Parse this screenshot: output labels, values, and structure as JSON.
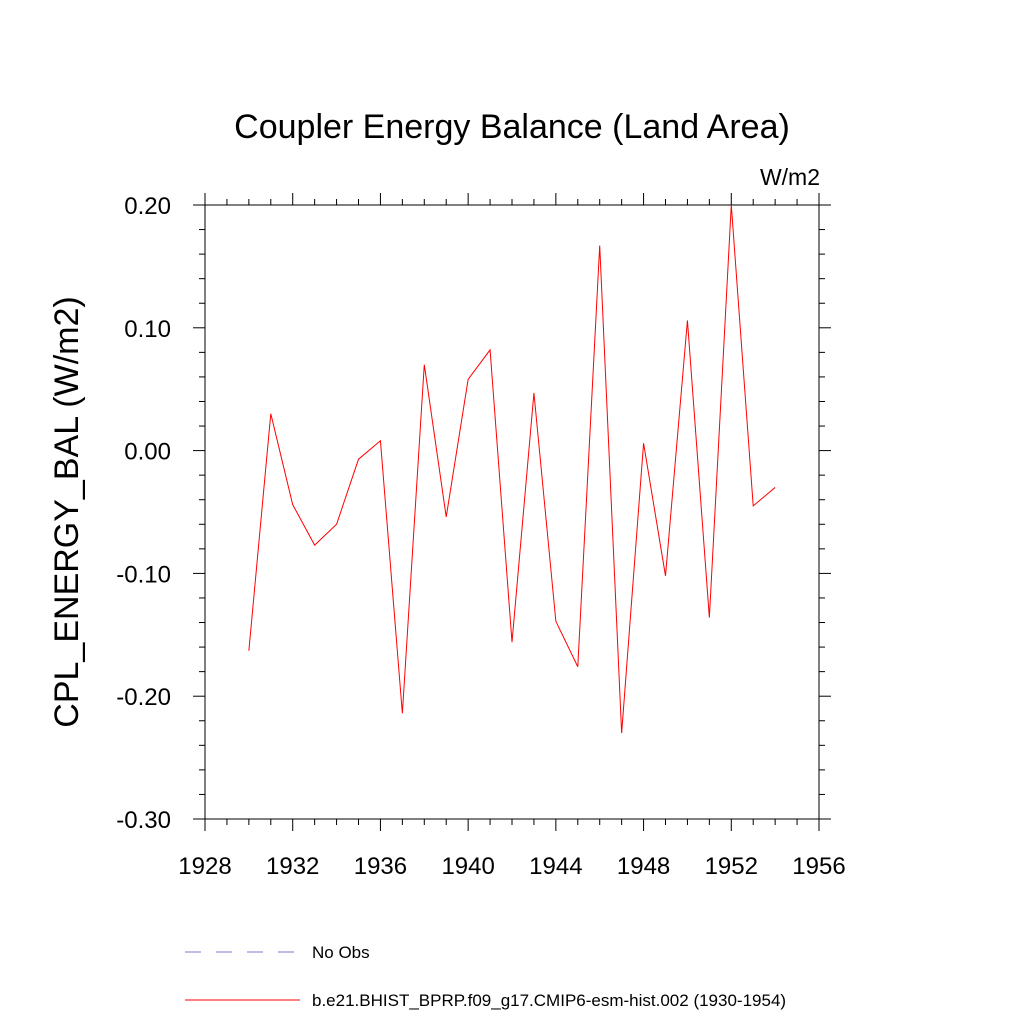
{
  "chart_data": {
    "type": "line",
    "title": "Coupler Energy Balance (Land Area)",
    "units": "W/m2",
    "ylabel": "CPL_ENERGY_BAL  (W/m2)",
    "xlabel": "",
    "xlim": [
      1928,
      1956
    ],
    "ylim": [
      -0.3,
      0.2
    ],
    "x_major_ticks": [
      1928,
      1932,
      1936,
      1940,
      1944,
      1948,
      1952,
      1956
    ],
    "x_tick_labels": [
      "1928",
      "1932",
      "1936",
      "1940",
      "1944",
      "1948",
      "1952",
      "1956"
    ],
    "x_minor_step": 1,
    "y_major_ticks": [
      -0.3,
      -0.2,
      -0.1,
      0.0,
      0.1,
      0.2
    ],
    "y_tick_labels": [
      "-0.30",
      "-0.20",
      "-0.10",
      "0.00",
      "0.10",
      "0.20"
    ],
    "y_minor_step": 0.02,
    "grid": false,
    "legend_position": "bottom",
    "series": [
      {
        "name": "No Obs",
        "color": "#7b7bd0",
        "style": "dashed",
        "x": [],
        "values": []
      },
      {
        "name": "b.e21.BHIST_BPRP.f09_g17.CMIP6-esm-hist.002 (1930-1954)",
        "color": "#ff0000",
        "style": "solid",
        "x": [
          1930,
          1931,
          1932,
          1933,
          1934,
          1935,
          1936,
          1937,
          1938,
          1939,
          1940,
          1941,
          1942,
          1943,
          1944,
          1945,
          1946,
          1947,
          1948,
          1949,
          1950,
          1951,
          1952,
          1953,
          1954
        ],
        "values": [
          -0.163,
          0.03,
          -0.044,
          -0.077,
          -0.06,
          -0.007,
          0.008,
          -0.214,
          0.07,
          -0.054,
          0.058,
          0.082,
          -0.156,
          0.047,
          -0.139,
          -0.176,
          0.167,
          -0.23,
          0.006,
          -0.102,
          0.106,
          -0.136,
          0.2,
          -0.045,
          -0.03
        ]
      }
    ]
  }
}
